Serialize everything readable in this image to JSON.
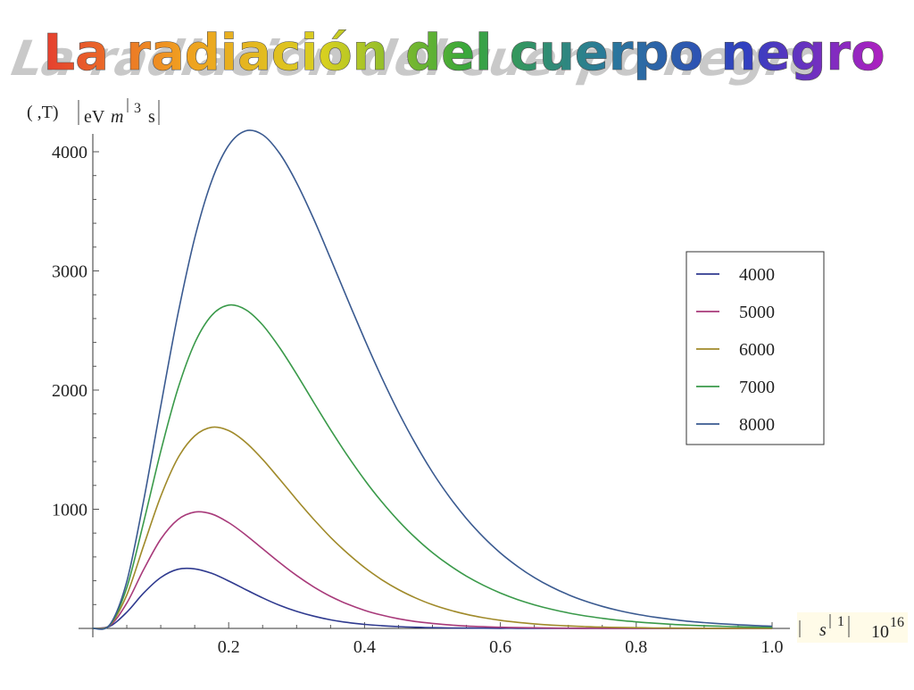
{
  "slide": {
    "title": "La radiación del cuerpo negro",
    "title_gradient": [
      "#e53e2f",
      "#f0a020",
      "#d8d020",
      "#3aa83a",
      "#2a7a9a",
      "#3040c0",
      "#b020c0"
    ],
    "y_axis_label": {
      "head": "( ,T)",
      "unit": "eV",
      "var": "m",
      "exp": "3",
      "tail": "s"
    },
    "x_axis_label": {
      "var": "s",
      "exp": "1",
      "mult": "10",
      "mult_exp": "16"
    }
  },
  "chart_data": {
    "type": "line",
    "xlim": [
      0,
      1.0
    ],
    "ylim": [
      0,
      4000
    ],
    "x_ticks": [
      "0.2",
      "0.4",
      "0.6",
      "0.8",
      "1.0"
    ],
    "x_tick_values": [
      0.2,
      0.4,
      0.6,
      0.8,
      1.0
    ],
    "y_ticks": [
      "1000",
      "2000",
      "3000",
      "4000"
    ],
    "y_tick_values": [
      1000,
      2000,
      3000,
      4000
    ],
    "legend_position": "right",
    "grid": false,
    "x": [
      0,
      0.025,
      0.05,
      0.075,
      0.1,
      0.125,
      0.15,
      0.175,
      0.2,
      0.225,
      0.25,
      0.275,
      0.3,
      0.325,
      0.35,
      0.375,
      0.4,
      0.425,
      0.45,
      0.475,
      0.5,
      0.525,
      0.55,
      0.575,
      0.6,
      0.625,
      0.65,
      0.675,
      0.7,
      0.725,
      0.75,
      0.775,
      0.8,
      0.825,
      0.85,
      0.875,
      0.9,
      0.925,
      0.95,
      0.975,
      1.0
    ],
    "series": [
      {
        "name": "4000",
        "color": "#2f3a8f",
        "values": [
          0,
          18,
          136,
          298,
          427,
          496,
          500,
          462,
          398,
          326,
          256,
          194,
          143,
          103,
          72,
          50,
          34,
          23,
          15,
          10,
          6,
          4,
          3,
          2,
          1,
          1,
          0,
          0,
          0,
          0,
          0,
          0,
          0,
          0,
          0,
          0,
          0,
          0,
          0,
          0,
          0
        ]
      },
      {
        "name": "5000",
        "color": "#a83a7a",
        "values": [
          0,
          23,
          213,
          496,
          749,
          912,
          976,
          960,
          888,
          785,
          668,
          552,
          444,
          349,
          269,
          204,
          152,
          112,
          81,
          58,
          42,
          29,
          20,
          14,
          10,
          7,
          5,
          3,
          2,
          1,
          1,
          0,
          0,
          0,
          0,
          0,
          0,
          0,
          0,
          0,
          0
        ]
      },
      {
        "name": "6000",
        "color": "#a08a2a",
        "values": [
          0,
          27,
          282,
          698,
          1108,
          1427,
          1615,
          1688,
          1660,
          1562,
          1418,
          1252,
          1081,
          917,
          765,
          630,
          511,
          410,
          326,
          256,
          199,
          154,
          118,
          90,
          68,
          51,
          38,
          28,
          21,
          15,
          11,
          8,
          6,
          4,
          3,
          2,
          1,
          1,
          1,
          1,
          0
        ]
      },
      {
        "name": "7000",
        "color": "#3a9a4a",
        "values": [
          0,
          29,
          343,
          896,
          1486,
          2007,
          2394,
          2627,
          2713,
          2675,
          2546,
          2356,
          2134,
          1899,
          1668,
          1449,
          1247,
          1065,
          903,
          760,
          636,
          530,
          439,
          362,
          297,
          243,
          198,
          161,
          130,
          105,
          85,
          68,
          55,
          44,
          35,
          28,
          22,
          18,
          14,
          11,
          9
        ]
      },
      {
        "name": "8000",
        "color": "#3a5a90",
        "values": [
          0,
          31,
          395,
          1079,
          1865,
          2629,
          3275,
          3756,
          4054,
          4175,
          4142,
          3986,
          3740,
          3438,
          3104,
          2762,
          2427,
          2109,
          1815,
          1549,
          1311,
          1103,
          922,
          766,
          633,
          521,
          426,
          348,
          283,
          229,
          185,
          149,
          120,
          96,
          77,
          61,
          49,
          39,
          31,
          24,
          19
        ]
      }
    ]
  }
}
